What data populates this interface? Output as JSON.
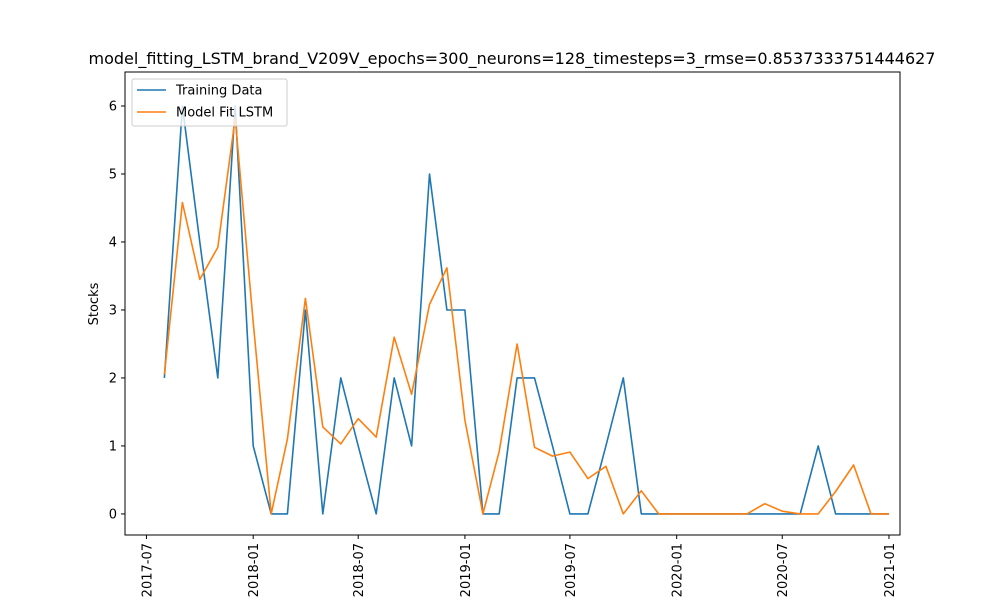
{
  "chart_data": {
    "type": "line",
    "title": "model_fitting_LSTM_brand_V209V_epochs=300_neurons=128_timesteps=3_rmse=0.8537333751444627",
    "xlabel": "",
    "ylabel": "Stocks",
    "x_range": [
      "2017-05-25",
      "2021-01-20"
    ],
    "ylim": [
      -0.31,
      6.5
    ],
    "yticks": [
      0,
      1,
      2,
      3,
      4,
      5,
      6
    ],
    "xticks": [
      {
        "date": "2017-07-01",
        "label": "2017-07"
      },
      {
        "date": "2018-01-01",
        "label": "2018-01"
      },
      {
        "date": "2018-07-01",
        "label": "2018-07"
      },
      {
        "date": "2019-01-01",
        "label": "2019-01"
      },
      {
        "date": "2019-07-01",
        "label": "2019-07"
      },
      {
        "date": "2020-01-01",
        "label": "2020-01"
      },
      {
        "date": "2020-07-01",
        "label": "2020-07"
      },
      {
        "date": "2021-01-01",
        "label": "2021-01"
      }
    ],
    "grid": false,
    "legend_position": "top-left",
    "x": [
      "2017-08-01",
      "2017-09-01",
      "2017-10-01",
      "2017-11-01",
      "2017-12-01",
      "2018-01-01",
      "2018-02-01",
      "2018-03-01",
      "2018-04-01",
      "2018-05-01",
      "2018-06-01",
      "2018-07-01",
      "2018-08-01",
      "2018-09-01",
      "2018-10-01",
      "2018-11-01",
      "2018-12-01",
      "2019-01-01",
      "2019-02-01",
      "2019-03-01",
      "2019-04-01",
      "2019-05-01",
      "2019-06-01",
      "2019-07-01",
      "2019-08-01",
      "2019-09-01",
      "2019-10-01",
      "2019-11-01",
      "2019-12-01",
      "2020-01-01",
      "2020-02-01",
      "2020-03-01",
      "2020-04-01",
      "2020-05-01",
      "2020-06-01",
      "2020-07-01",
      "2020-08-01",
      "2020-09-01",
      "2020-10-01",
      "2020-11-01",
      "2020-12-01",
      "2021-01-01"
    ],
    "series": [
      {
        "name": "Training Data",
        "color": "#1f77b4",
        "values": [
          2,
          6,
          4,
          2,
          6,
          1,
          0,
          0,
          3,
          0,
          2,
          1,
          0,
          2,
          1,
          5,
          3,
          3,
          0,
          0,
          2,
          2,
          1,
          0,
          0,
          1,
          2,
          0,
          0,
          0,
          0,
          0,
          0,
          0,
          0,
          0,
          0,
          1,
          0,
          0,
          0,
          0
        ]
      },
      {
        "name": "Model Fit LSTM",
        "color": "#ff7f0e",
        "values": [
          2.05,
          4.58,
          3.45,
          3.92,
          5.82,
          2.82,
          0,
          1.1,
          3.17,
          1.28,
          1.03,
          1.4,
          1.13,
          2.6,
          1.76,
          3.08,
          3.62,
          1.38,
          0,
          0.92,
          2.5,
          0.98,
          0.85,
          0.91,
          0.52,
          0.7,
          0,
          0.34,
          0,
          0,
          0,
          0,
          0,
          0,
          0.15,
          0.04,
          0,
          0,
          0.33,
          0.72,
          0,
          0
        ]
      }
    ]
  }
}
